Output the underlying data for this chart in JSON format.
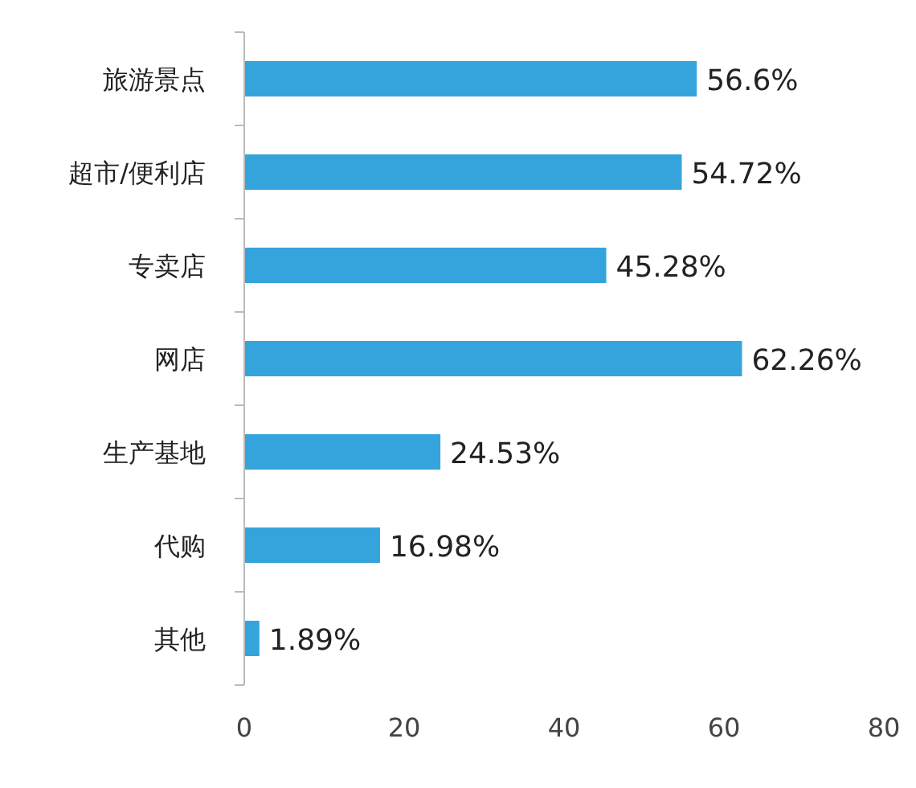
{
  "chart_data": {
    "type": "bar",
    "orientation": "horizontal",
    "categories": [
      "旅游景点",
      "超市/便利店",
      "专卖店",
      "网店",
      "生产基地",
      "代购",
      "其他"
    ],
    "values": [
      56.6,
      54.72,
      45.28,
      62.26,
      24.53,
      16.98,
      1.89
    ],
    "value_labels": [
      "56.6%",
      "54.72%",
      "45.28%",
      "62.26%",
      "24.53%",
      "16.98%",
      "1.89%"
    ],
    "color": "#35a4dc",
    "xlim": [
      0,
      80
    ],
    "xticks": [
      0,
      20,
      40,
      60,
      80
    ],
    "grid": false
  }
}
